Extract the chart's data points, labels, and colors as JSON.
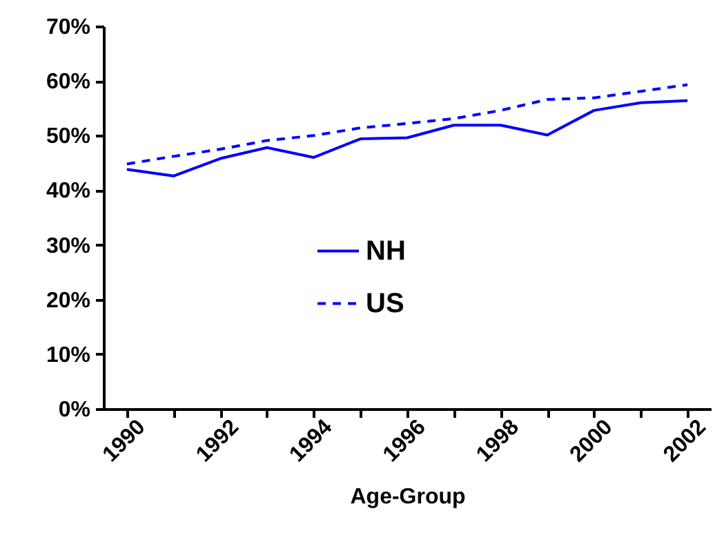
{
  "chart_data": {
    "type": "line",
    "xlabel": "Age-Group",
    "categories": [
      "1990",
      null,
      "1992",
      null,
      "1994",
      null,
      "1996",
      null,
      "1998",
      null,
      "2000",
      null,
      "2002"
    ],
    "series": [
      {
        "name": "NH",
        "color": "#0000ff",
        "line_style": "solid",
        "values": [
          43.8,
          42.6,
          45.8,
          47.8,
          46.0,
          49.4,
          49.6,
          51.9,
          51.9,
          50.1,
          54.6,
          56.0,
          56.4
        ]
      },
      {
        "name": "US",
        "color": "#0000ff",
        "line_style": "dashed",
        "values": [
          44.8,
          46.2,
          47.5,
          49.1,
          50.0,
          51.4,
          52.2,
          53.1,
          54.6,
          56.6,
          56.9,
          58.1,
          59.3
        ]
      }
    ],
    "ylim": [
      0,
      70
    ],
    "yticks": [
      {
        "value": 0,
        "label": "0%"
      },
      {
        "value": 10,
        "label": "10%"
      },
      {
        "value": 20,
        "label": "20%"
      },
      {
        "value": 30,
        "label": "30%"
      },
      {
        "value": 40,
        "label": "40%"
      },
      {
        "value": 50,
        "label": "50%"
      },
      {
        "value": 60,
        "label": "60%"
      },
      {
        "value": 70,
        "label": "70%"
      }
    ],
    "legend": "center"
  }
}
